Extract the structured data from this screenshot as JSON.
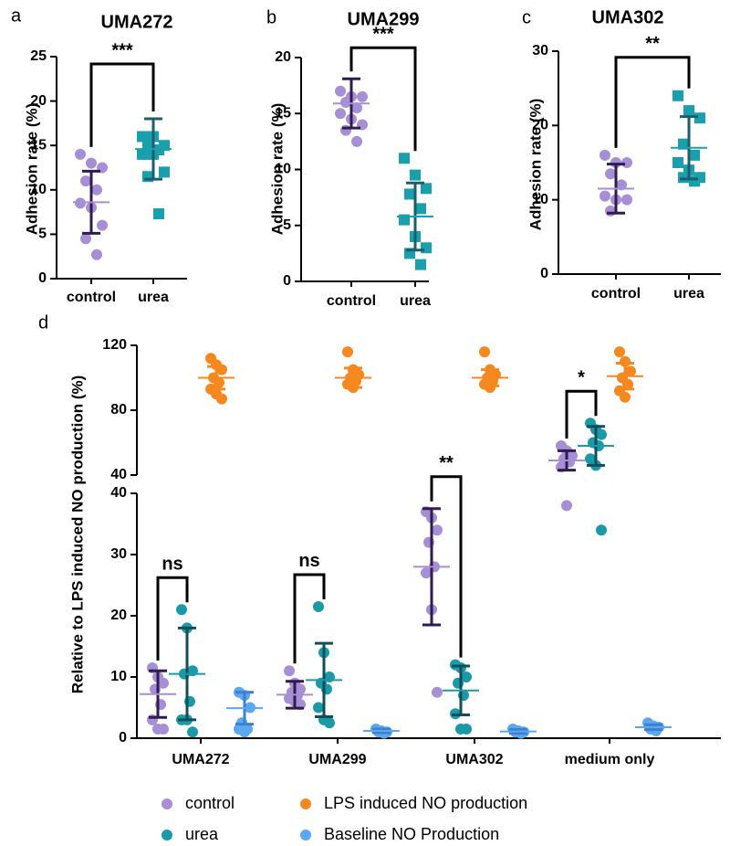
{
  "chart_data": [
    {
      "type": "dot",
      "panel": "a",
      "title": "UMA272",
      "ylabel": "Adhesion rate (%)",
      "categories": [
        "control",
        "urea"
      ],
      "ylim": [
        0,
        25
      ],
      "yticks": [
        0,
        5,
        10,
        15,
        20,
        25
      ],
      "groups": [
        {
          "color": "#a68fd4",
          "bar_color": "#2f1b4f",
          "marker": "circle",
          "values": [
            14,
            13,
            12.5,
            11,
            10,
            8.5,
            8,
            6,
            4.5,
            2.7
          ],
          "mean": 8.6,
          "sd": 3.5
        },
        {
          "color": "#1aa0ad",
          "bar_color": "#1d5e6b",
          "marker": "square",
          "values": [
            16,
            16,
            15,
            15,
            14.5,
            14,
            14,
            12,
            11.5,
            7.3
          ],
          "mean": 14.6,
          "sd": 3.4
        }
      ],
      "significance": "***"
    },
    {
      "type": "dot",
      "panel": "b",
      "title": "UMA299",
      "ylabel": "Adhesion rate (%)",
      "categories": [
        "control",
        "urea"
      ],
      "ylim": [
        0,
        20
      ],
      "yticks": [
        0,
        5,
        10,
        15,
        20
      ],
      "groups": [
        {
          "color": "#a68fd4",
          "bar_color": "#2f1b4f",
          "marker": "circle",
          "values": [
            17,
            16.5,
            16.5,
            16,
            15.5,
            15,
            14.5,
            14,
            13.5,
            12.5
          ],
          "mean": 15.9,
          "sd": 2.2
        },
        {
          "color": "#1aa0ad",
          "bar_color": "#1d5e6b",
          "marker": "square",
          "values": [
            11,
            9.5,
            8.3,
            7.8,
            6.5,
            5.5,
            4,
            3,
            2.5,
            1.5
          ],
          "mean": 5.8,
          "sd": 3.0
        }
      ],
      "significance": "***"
    },
    {
      "type": "dot",
      "panel": "c",
      "title": "UMA302",
      "ylabel": "Adhesion rate (%)",
      "categories": [
        "control",
        "urea"
      ],
      "ylim": [
        0,
        30
      ],
      "yticks": [
        0,
        10,
        20,
        30
      ],
      "groups": [
        {
          "color": "#a68fd4",
          "bar_color": "#2f1b4f",
          "marker": "circle",
          "values": [
            16,
            15,
            15,
            13.5,
            12,
            10.5,
            10,
            10,
            8.5
          ],
          "mean": 11.5,
          "sd": 3.3
        },
        {
          "color": "#1aa0ad",
          "bar_color": "#1d5e6b",
          "marker": "square",
          "values": [
            24,
            22,
            21,
            17.5,
            16,
            15,
            14,
            13,
            13,
            12.5
          ],
          "mean": 17.0,
          "sd": 4.2
        }
      ],
      "significance": "**"
    },
    {
      "type": "dot",
      "panel": "d",
      "ylabel": "Relative to LPS induced NO production (%)",
      "categories": [
        "UMA272",
        "UMA299",
        "UMA302",
        "medium only"
      ],
      "segments": [
        {
          "ylim": [
            0,
            40
          ],
          "yticks": [
            0,
            10,
            20,
            30,
            40
          ]
        },
        {
          "ylim": [
            40,
            120
          ],
          "yticks": [
            40,
            80,
            120
          ]
        }
      ],
      "series": [
        {
          "name": "control",
          "color": "#a68fd4",
          "bar_color": "#2f1b4f",
          "label_color": "#2e2a6b",
          "values": [
            [
              11.5,
              10,
              9,
              8,
              5.5,
              3,
              1.5,
              1.5
            ],
            [
              11,
              9,
              8,
              7.5,
              7,
              6.5,
              6,
              5.5
            ],
            [
              37,
              36,
              34,
              32,
              28,
              27,
              21,
              7.5
            ],
            [
              58,
              55,
              52,
              50,
              48,
              45,
              38
            ]
          ],
          "mean": [
            7.2,
            7.1,
            28,
            49
          ],
          "sd": [
            3.8,
            2.2,
            9.5,
            6
          ]
        },
        {
          "name": "urea",
          "color": "#1a9aa6",
          "bar_color": "#124e59",
          "label_color": "#2e2a6b",
          "values": [
            [
              21,
              18,
              11,
              10.5,
              6,
              3,
              3,
              1
            ],
            [
              21.5,
              14,
              10,
              9,
              8,
              5,
              3,
              2.5
            ],
            [
              12,
              11.5,
              10,
              9,
              7,
              4,
              1.5,
              1.5
            ],
            [
              72,
              68,
              65,
              60,
              58,
              50,
              46,
              34
            ]
          ],
          "mean": [
            10.5,
            9.5,
            7.8,
            58
          ],
          "sd": [
            7.5,
            6,
            4,
            12
          ]
        },
        {
          "name": "LPS induced NO production",
          "color": "#f5891f",
          "bar_color": "#f5891f",
          "label_color": "#d9741c",
          "values": [
            [
              112,
              108,
              105,
              100,
              97,
              93,
              90,
              87
            ],
            [
              116,
              105,
              102,
              100,
              98,
              96,
              94
            ],
            [
              116,
              105,
              102,
              100,
              98,
              96,
              94
            ],
            [
              116,
              110,
              104,
              100,
              96,
              92,
              88
            ]
          ],
          "mean": [
            100,
            100,
            100,
            101
          ],
          "sd": [
            7,
            6,
            5,
            8
          ]
        },
        {
          "name": "Baseline NO Production",
          "color": "#5aa8ee",
          "bar_color": "#3f7fcf",
          "label_color": "#2336a8",
          "values": [
            [
              7.5,
              7,
              5,
              2.5,
              1.5,
              1.5,
              1
            ],
            [
              1.5,
              1.2,
              1,
              1,
              0.8
            ],
            [
              1.5,
              1.2,
              1,
              1,
              0.8
            ],
            [
              2.5,
              2,
              1.8,
              1.5,
              1.2
            ]
          ],
          "mean": [
            4.9,
            1.2,
            1.1,
            1.8
          ],
          "sd": [
            2.6,
            0.3,
            0.3,
            0.4
          ]
        }
      ],
      "significance": [
        "ns",
        "ns",
        "**",
        "*"
      ]
    }
  ]
}
